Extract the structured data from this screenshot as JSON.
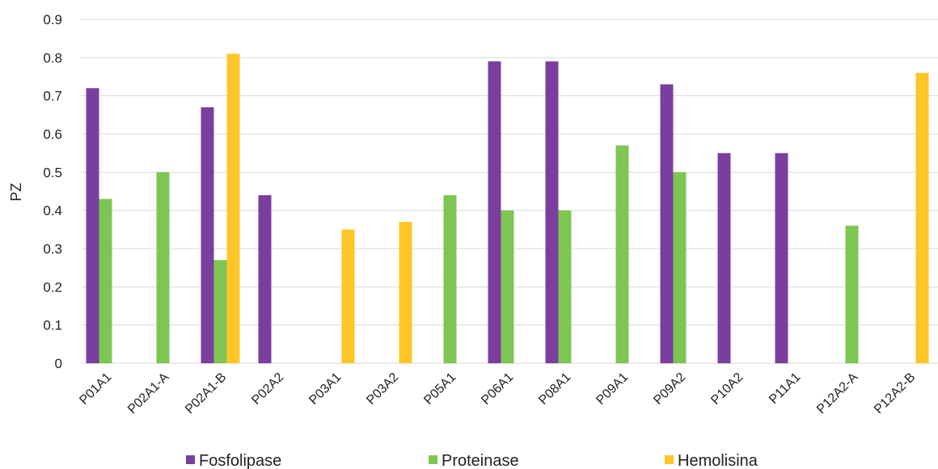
{
  "chart_data": {
    "type": "bar",
    "title": "",
    "xlabel": "",
    "ylabel": "PZ",
    "ylim": [
      0,
      0.9
    ],
    "yticks": [
      "0",
      "0.1",
      "0.2",
      "0.3",
      "0.4",
      "0.5",
      "0.6",
      "0.7",
      "0.8",
      "0.9"
    ],
    "grid": true,
    "legend_position": "bottom",
    "categories": [
      "P01A1",
      "P02A1-A",
      "P02A1-B",
      "P02A2",
      "P03A1",
      "P03A2",
      "P05A1",
      "P06A1",
      "P08A1",
      "P09A1",
      "P09A2",
      "P10A2",
      "P11A1",
      "P12A2-A",
      "P12A2-B"
    ],
    "series": [
      {
        "name": "Fosfolipase",
        "color": "#7a3f9e",
        "values": [
          0.72,
          null,
          0.67,
          0.44,
          null,
          null,
          null,
          0.79,
          0.79,
          null,
          0.73,
          0.55,
          0.55,
          null,
          null
        ]
      },
      {
        "name": "Proteinase",
        "color": "#7ec653",
        "values": [
          0.43,
          0.5,
          0.27,
          null,
          null,
          null,
          0.44,
          0.4,
          0.4,
          0.57,
          0.5,
          null,
          null,
          0.36,
          null
        ]
      },
      {
        "name": "Hemolisina",
        "color": "#ffc526",
        "values": [
          null,
          null,
          0.81,
          null,
          0.35,
          0.37,
          null,
          null,
          null,
          null,
          null,
          null,
          null,
          null,
          0.76
        ]
      }
    ]
  }
}
